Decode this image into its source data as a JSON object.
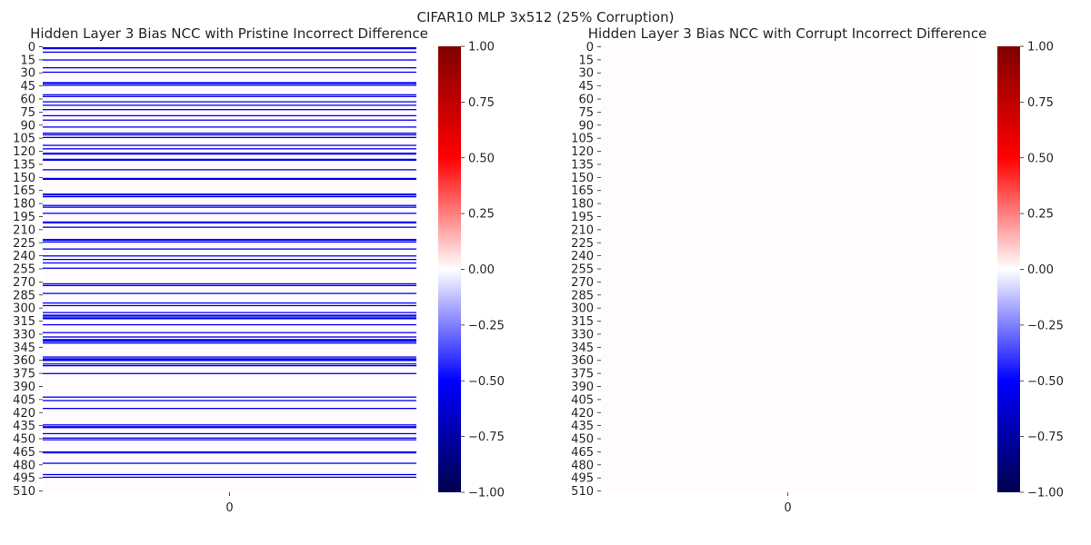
{
  "suptitle": "CIFAR10 MLP 3x512 (25% Corruption)",
  "colormap": "seismic",
  "colors": {
    "neg": "#00004c",
    "mid": "#fffbff",
    "pos": "#800000",
    "stripe": "#0000ee"
  },
  "chart_data": [
    {
      "type": "heatmap",
      "title": "Hidden Layer 3 Bias NCC with Pristine Incorrect Difference",
      "rows": 512,
      "columns": [
        0
      ],
      "x_tick_labels": [
        "0"
      ],
      "y_tick_labels": [
        "0",
        "15",
        "30",
        "45",
        "60",
        "75",
        "90",
        "105",
        "120",
        "135",
        "150",
        "165",
        "180",
        "195",
        "210",
        "225",
        "240",
        "255",
        "270",
        "285",
        "300",
        "315",
        "330",
        "345",
        "360",
        "375",
        "390",
        "405",
        "420",
        "435",
        "450",
        "465",
        "480",
        "495",
        "510"
      ],
      "default_value": 0.0,
      "nonzero_value": -0.9,
      "nonzero_rows": [
        1,
        2,
        6,
        15,
        24,
        29,
        41,
        42,
        44,
        55,
        57,
        63,
        67,
        72,
        79,
        84,
        92,
        99,
        101,
        104,
        113,
        117,
        122,
        123,
        129,
        130,
        141,
        151,
        152,
        169,
        170,
        172,
        182,
        184,
        191,
        201,
        202,
        207,
        221,
        222,
        224,
        232,
        240,
        244,
        248,
        254,
        272,
        274,
        283,
        294,
        297,
        305,
        308,
        309,
        311,
        312,
        319,
        328,
        333,
        336,
        337,
        338,
        340,
        356,
        358,
        359,
        360,
        364,
        366,
        375,
        402,
        406,
        415,
        434,
        436,
        437,
        444,
        449,
        451,
        465,
        466,
        478,
        491,
        494
      ],
      "colorbar": {
        "vmin": -1.0,
        "vmax": 1.0,
        "tick_labels": [
          "1.00",
          "0.75",
          "0.50",
          "0.25",
          "0.00",
          "−0.25",
          "−0.50",
          "−0.75",
          "−1.00"
        ]
      }
    },
    {
      "type": "heatmap",
      "title": "Hidden Layer 3 Bias NCC with Corrupt Incorrect Difference",
      "rows": 512,
      "columns": [
        0
      ],
      "x_tick_labels": [
        "0"
      ],
      "y_tick_labels": [
        "0",
        "15",
        "30",
        "45",
        "60",
        "75",
        "90",
        "105",
        "120",
        "135",
        "150",
        "165",
        "180",
        "195",
        "210",
        "225",
        "240",
        "255",
        "270",
        "285",
        "300",
        "315",
        "330",
        "345",
        "360",
        "375",
        "390",
        "405",
        "420",
        "435",
        "450",
        "465",
        "480",
        "495",
        "510"
      ],
      "default_value": 0.0,
      "nonzero_value": -0.9,
      "nonzero_rows": [],
      "colorbar": {
        "vmin": -1.0,
        "vmax": 1.0,
        "tick_labels": [
          "1.00",
          "0.75",
          "0.50",
          "0.25",
          "0.00",
          "−0.25",
          "−0.50",
          "−0.75",
          "−1.00"
        ]
      }
    }
  ]
}
